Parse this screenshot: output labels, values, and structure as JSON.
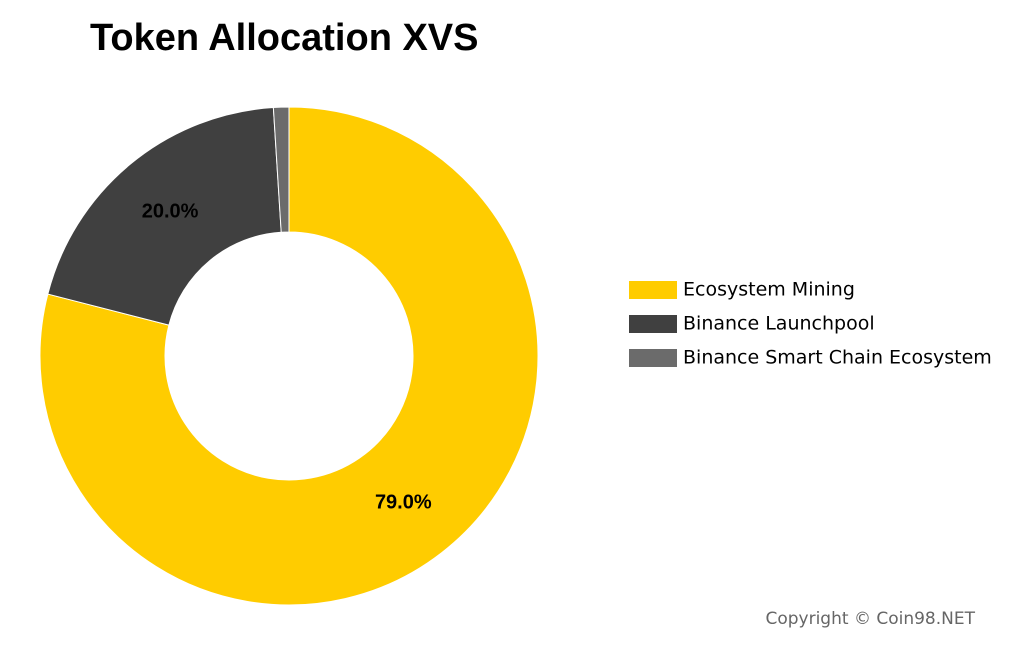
{
  "chart_data": {
    "type": "donut",
    "title": "Token Allocation XVS",
    "categories": [
      "Ecosystem Mining",
      "Binance Launchpool",
      "Binance Smart Chain Ecosystem"
    ],
    "values": [
      79,
      20,
      1
    ],
    "value_labels": [
      "79.0%",
      "20.0%",
      null
    ],
    "colors": [
      "#FFCC00",
      "#404040",
      "#6B6B6B"
    ],
    "legend": "right",
    "copyright": "Copyright © Coin98.NET"
  }
}
